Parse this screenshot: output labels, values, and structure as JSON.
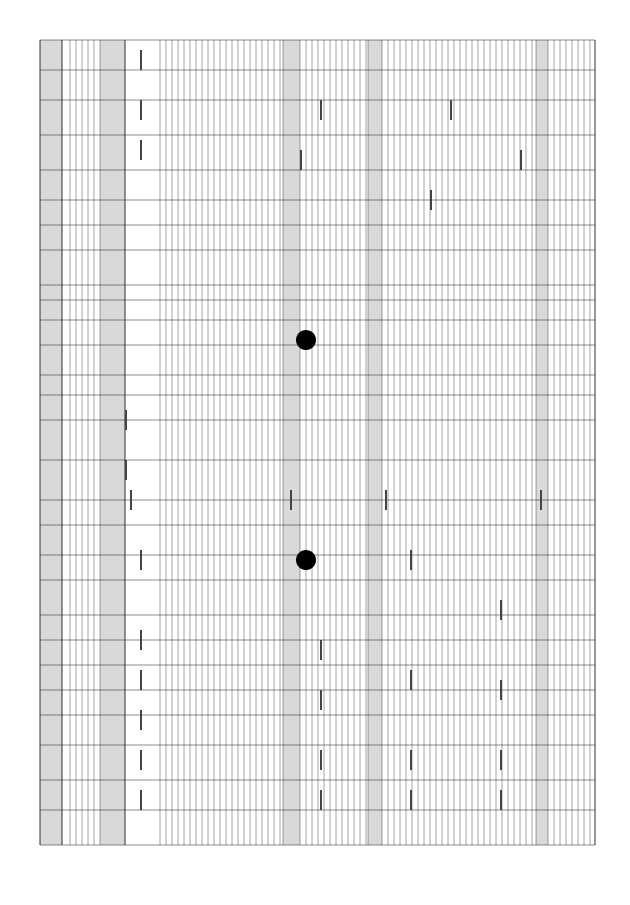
{
  "document": {
    "orientation": "rotated-90",
    "colors": {
      "ink": "#1a1a1a",
      "section_fill": "#d9d9d9",
      "paper": "#ffffff"
    },
    "page_number": ""
  }
}
